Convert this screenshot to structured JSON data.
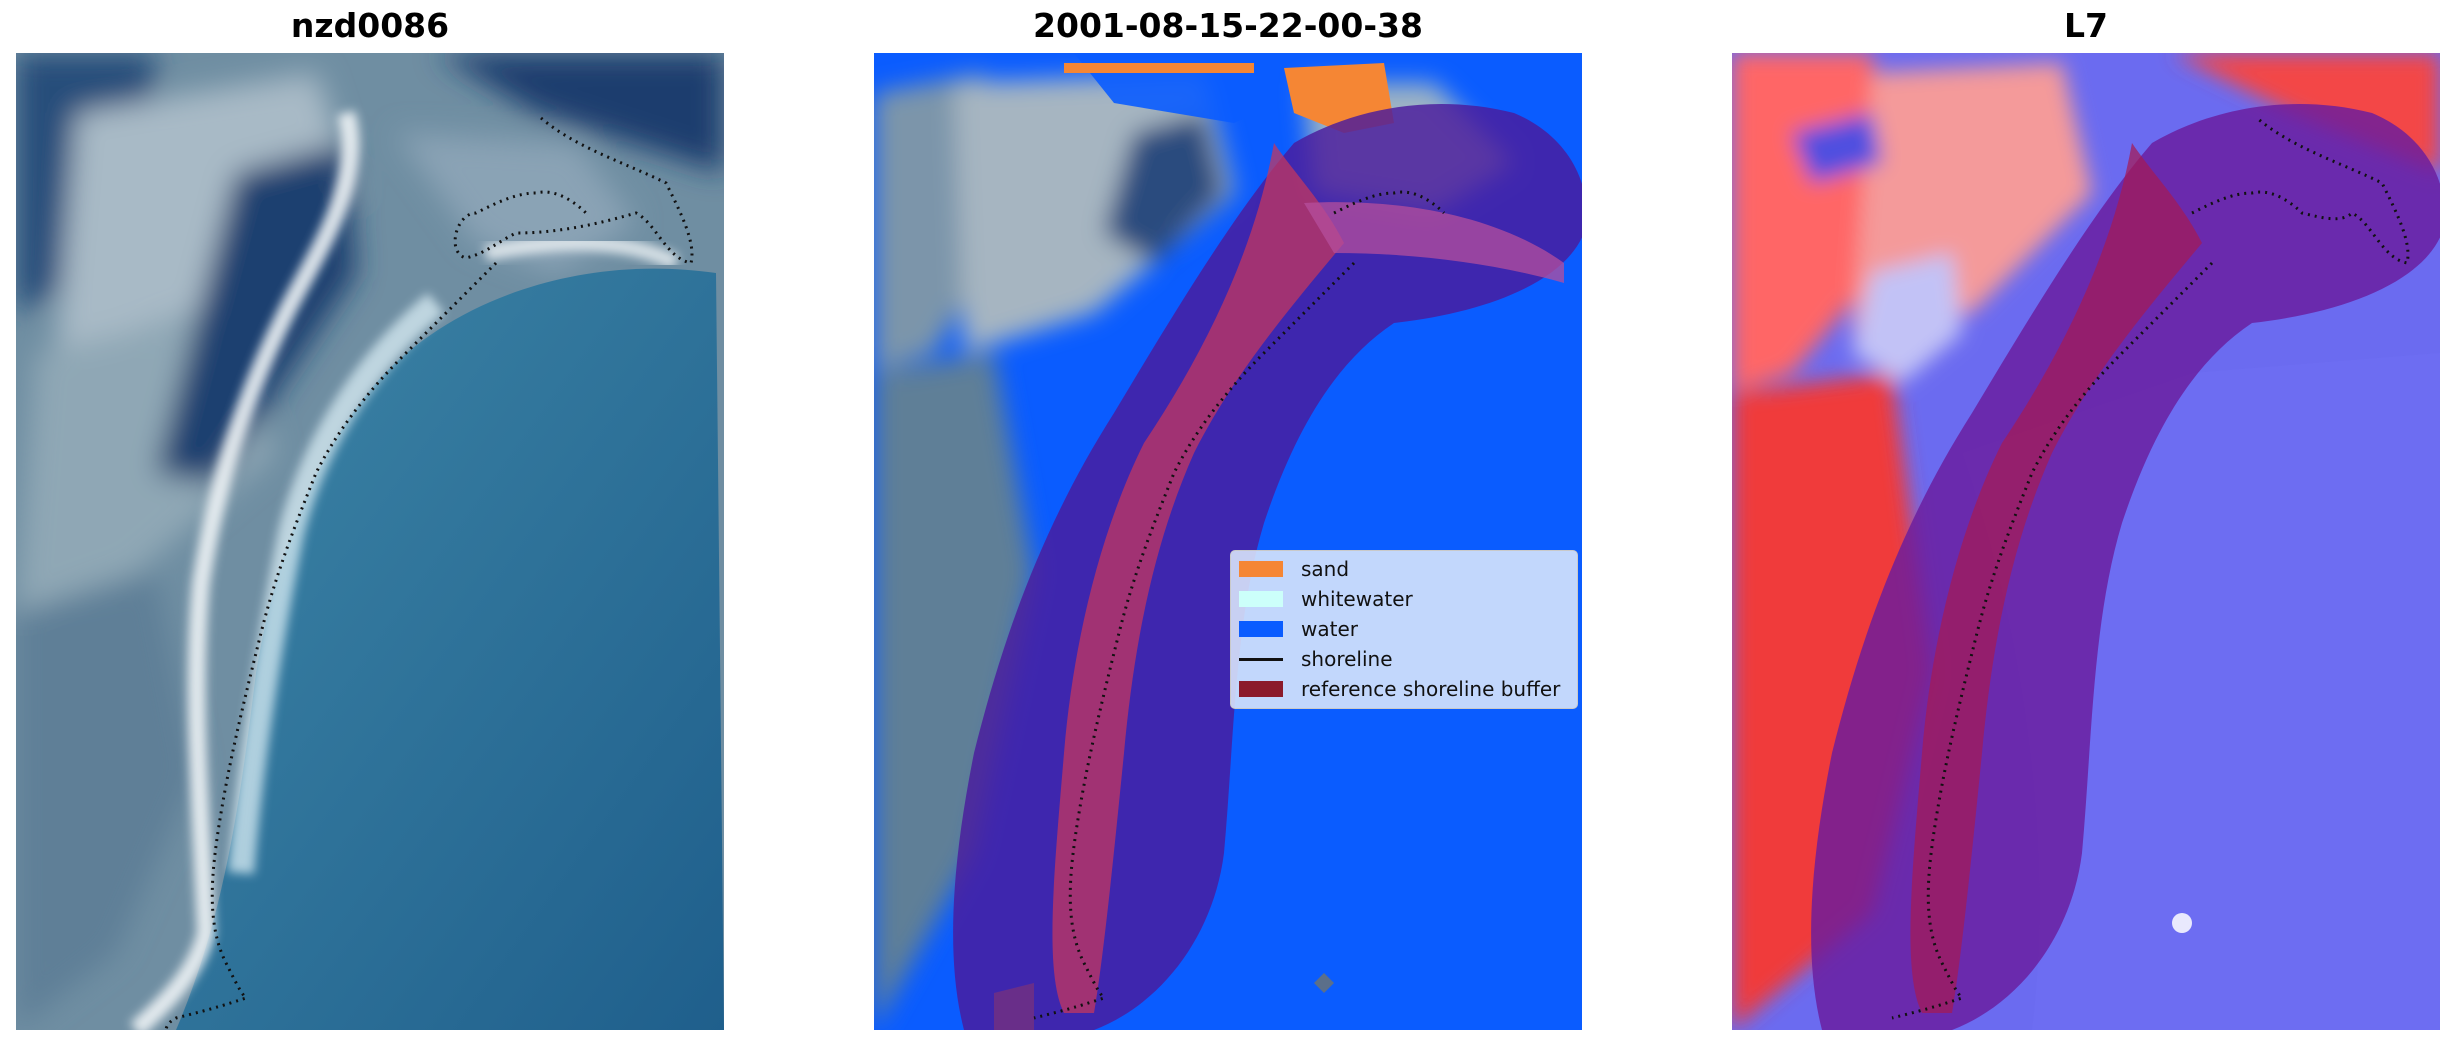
{
  "panels": [
    {
      "title": "nzd0086"
    },
    {
      "title": "2001-08-15-22-00-38"
    },
    {
      "title": "L7"
    }
  ],
  "legend": {
    "items": [
      {
        "label": "sand",
        "color": "#f58634",
        "kind": "patch"
      },
      {
        "label": "whitewater",
        "color": "#ccfffa",
        "kind": "patch"
      },
      {
        "label": "water",
        "color": "#0a5cff",
        "kind": "patch"
      },
      {
        "label": "shoreline",
        "color": "#111111",
        "kind": "line"
      },
      {
        "label": "reference shoreline buffer",
        "color": "#8b1a2b",
        "kind": "patch"
      }
    ]
  }
}
